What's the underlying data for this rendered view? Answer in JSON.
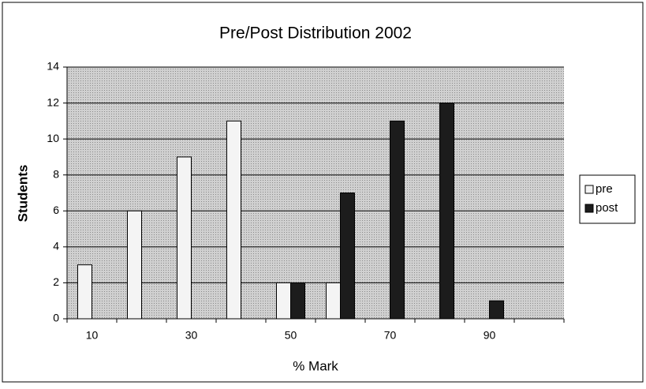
{
  "chart_data": {
    "type": "bar",
    "title": "Pre/Post Distribution 2002",
    "x_label": "% Mark",
    "y_label": "Students",
    "categories": [
      10,
      null,
      30,
      null,
      50,
      null,
      70,
      null,
      90,
      null
    ],
    "series": [
      {
        "name": "pre",
        "color": "#f4f4f4",
        "values": [
          3,
          6,
          9,
          11,
          2,
          2,
          0,
          0,
          0,
          0
        ]
      },
      {
        "name": "post",
        "color": "#1c1c1c",
        "values": [
          0,
          0,
          0,
          0,
          2,
          7,
          11,
          12,
          1,
          0
        ]
      }
    ],
    "ylim": [
      0,
      14
    ],
    "yticks": [
      0,
      2,
      4,
      6,
      8,
      10,
      12,
      14
    ],
    "grid": true,
    "legend": "right"
  }
}
